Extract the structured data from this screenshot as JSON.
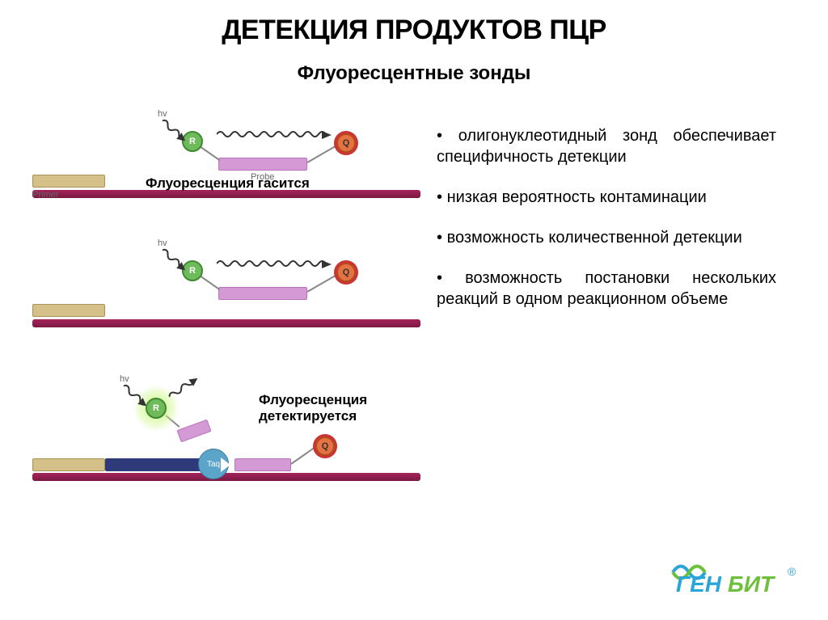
{
  "title": "ДЕТЕКЦИЯ ПРОДУКТОВ ПЦР",
  "title_fontsize": 34,
  "subtitle": "Флуоресцентные зонды",
  "subtitle_fontsize": 24,
  "body_fontsize": 20,
  "small_label_fontsize": 11,
  "caption_fontsize": 17,
  "colors": {
    "background": "#ffffff",
    "text": "#000000",
    "dna_strand": "#a6245b",
    "dna_strand_border": "#7a1a42",
    "primer_fill": "#d4c088",
    "primer_border": "#a89358",
    "probe_fill": "#d49ad6",
    "probe_border": "#b873bb",
    "reporter_fill": "#6fbb5c",
    "reporter_border": "#3f8a2e",
    "reporter_text": "#ffffff",
    "quencher_fill": "#e57342",
    "quencher_border": "#b54a20",
    "quencher_ring": "#cc3333",
    "quencher_text": "#333333",
    "taq_fill": "#5aa5c9",
    "taq_border": "#3a7a9a",
    "new_strand": "#2e3a7a",
    "glow": "#c8f77a",
    "wave": "#333333",
    "linker": "#888888",
    "label_gray": "#666666"
  },
  "labels": {
    "hv": "hv",
    "primer": "Primer",
    "probe": "Probe",
    "R": "R",
    "Q": "Q",
    "taq": "Taq"
  },
  "panels": [
    {
      "caption": "Флуоресценция гасится",
      "show_primer_label": true,
      "show_probe_label": true,
      "show_newstrand": false,
      "show_glow": false,
      "show_taq": false,
      "detached": false
    },
    {
      "caption": "",
      "show_primer_label": false,
      "show_probe_label": false,
      "show_newstrand": false,
      "show_glow": false,
      "show_taq": false,
      "detached": false
    },
    {
      "caption": "Флуоресценция детектируется",
      "show_primer_label": false,
      "show_probe_label": false,
      "show_newstrand": true,
      "show_glow": true,
      "show_taq": true,
      "detached": true
    }
  ],
  "bullets": [
    "олигонуклеотидный зонд обеспечивает специфичность детекции",
    "низкая вероятность контаминации",
    "возможность количественной детекции",
    "возможность постановки нескольких реакций в одном реакционном объеме"
  ],
  "logo": {
    "text": "ГЕНБИТ",
    "color1": "#2aa5d8",
    "color2": "#6ebf3a",
    "fontsize": 28
  }
}
